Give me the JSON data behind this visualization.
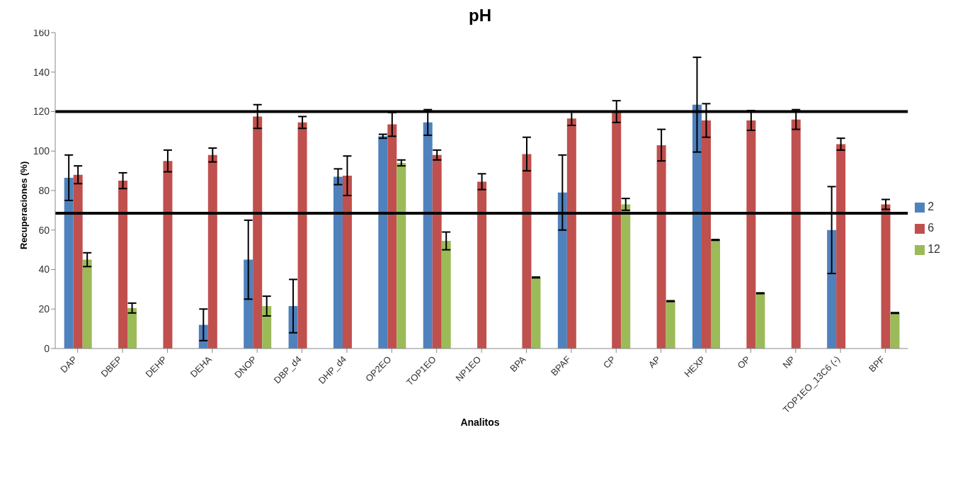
{
  "chart_data": {
    "type": "bar",
    "title": "pH",
    "xlabel": "Analitos",
    "ylabel": "Recuperaciones (%)",
    "categories": [
      "DAP",
      "DBEP",
      "DEHP",
      "DEHA",
      "DNOP",
      "DBP_d4",
      "DHP_d4",
      "OP2EO",
      "TOP1EO",
      "NP1EO",
      "BPA",
      "BPAF",
      "CP",
      "AP",
      "HEXP",
      "OP",
      "NP",
      "TOP1EO_13C6 (-)",
      "BPF"
    ],
    "series": [
      {
        "name": "2",
        "color": "#4f81bd",
        "values": [
          86.5,
          null,
          null,
          12,
          45,
          21.5,
          87,
          107.5,
          114.5,
          null,
          null,
          79,
          null,
          null,
          123.5,
          null,
          null,
          60,
          null
        ],
        "errors": [
          11.5,
          null,
          null,
          8,
          20,
          13.5,
          4,
          1,
          6.5,
          null,
          null,
          19,
          null,
          null,
          24,
          null,
          null,
          22,
          null
        ]
      },
      {
        "name": "6",
        "color": "#c0504d",
        "values": [
          88,
          85,
          95,
          98,
          117.5,
          114.5,
          87.5,
          113.5,
          98,
          84.5,
          98.5,
          116.5,
          120,
          103,
          115.5,
          115.5,
          116,
          103.5,
          73
        ],
        "errors": [
          4.5,
          4,
          5.5,
          3.5,
          6,
          3,
          10,
          6,
          2.5,
          4,
          8.5,
          3.5,
          5.5,
          8,
          8.5,
          5,
          5,
          3,
          2.5
        ]
      },
      {
        "name": "12",
        "color": "#9bbb59",
        "values": [
          45,
          20.5,
          null,
          null,
          21.5,
          null,
          null,
          94,
          54.5,
          null,
          36,
          null,
          73,
          24,
          55,
          28,
          null,
          null,
          18
        ],
        "errors": [
          3.5,
          2.5,
          null,
          null,
          5,
          null,
          null,
          1.5,
          4.5,
          null,
          0.2,
          null,
          3,
          0.2,
          0.2,
          0.2,
          null,
          null,
          0.2
        ]
      }
    ],
    "ylim": [
      0,
      160
    ],
    "yticks": [
      0,
      20,
      40,
      60,
      80,
      100,
      120,
      140,
      160
    ],
    "grid": false,
    "legend": "right",
    "ref_lines": [
      {
        "axis": "y",
        "value": 120,
        "color": "#000000"
      },
      {
        "axis": "y",
        "value": 68.5,
        "color": "#000000"
      }
    ]
  }
}
